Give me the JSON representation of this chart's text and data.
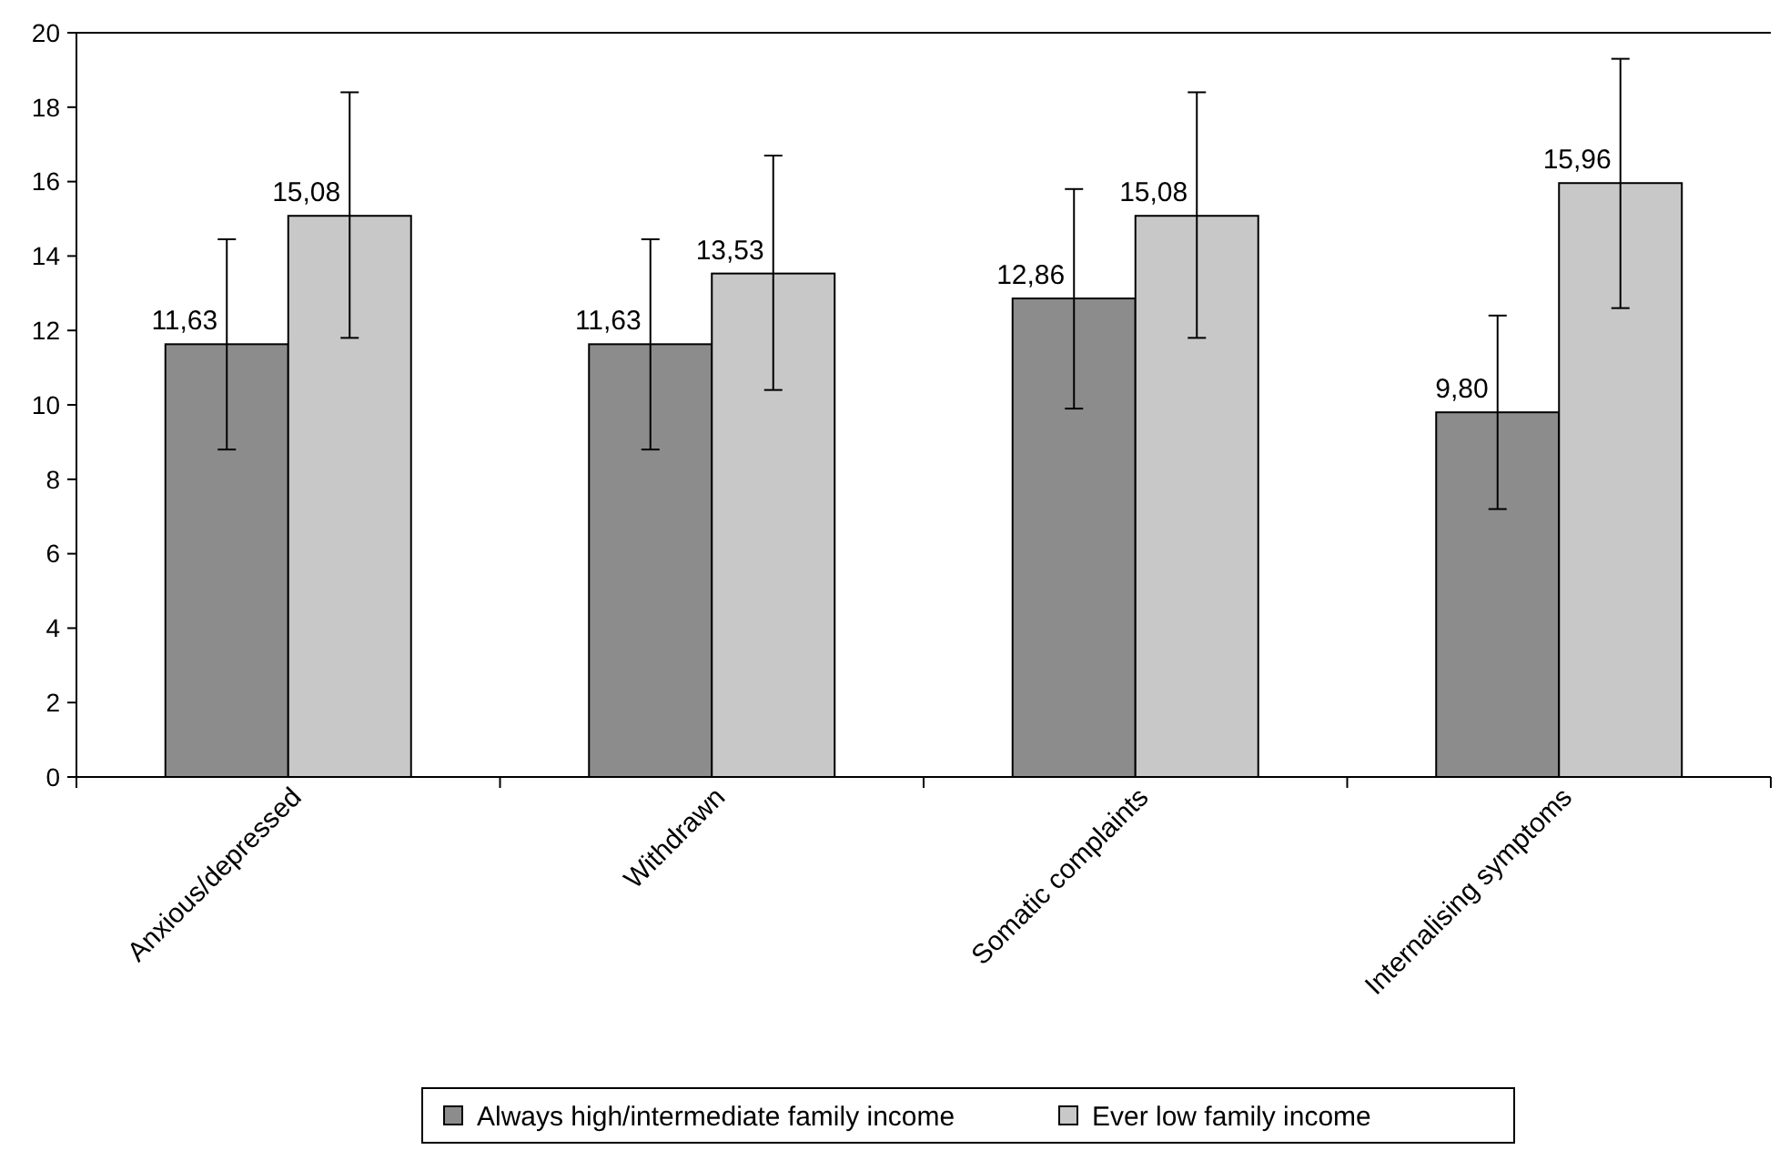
{
  "chart_data": {
    "type": "bar",
    "categories": [
      "Anxious/depressed",
      "Withdrawn",
      "Somatic complaints",
      "Internalising symptoms"
    ],
    "series": [
      {
        "name": "Always high/intermediate family income",
        "color": "#8c8c8c",
        "values": [
          11.63,
          11.63,
          12.86,
          9.8
        ],
        "value_labels": [
          "11,63",
          "11,63",
          "12,86",
          "9,80"
        ],
        "errors": [
          [
            8.8,
            14.45
          ],
          [
            8.8,
            14.45
          ],
          [
            9.9,
            15.8
          ],
          [
            7.2,
            12.4
          ]
        ]
      },
      {
        "name": "Ever low family income",
        "color": "#c8c8c8",
        "values": [
          15.08,
          13.53,
          15.08,
          15.96
        ],
        "value_labels": [
          "15,08",
          "13,53",
          "15,08",
          "15,96"
        ],
        "errors": [
          [
            11.8,
            18.4
          ],
          [
            10.4,
            16.7
          ],
          [
            11.8,
            18.4
          ],
          [
            12.6,
            19.3
          ]
        ]
      }
    ],
    "ylim": [
      0,
      20
    ],
    "yticks": [
      0,
      2,
      4,
      6,
      8,
      10,
      12,
      14,
      16,
      18,
      20
    ],
    "grid": false,
    "legend": "bottom"
  }
}
